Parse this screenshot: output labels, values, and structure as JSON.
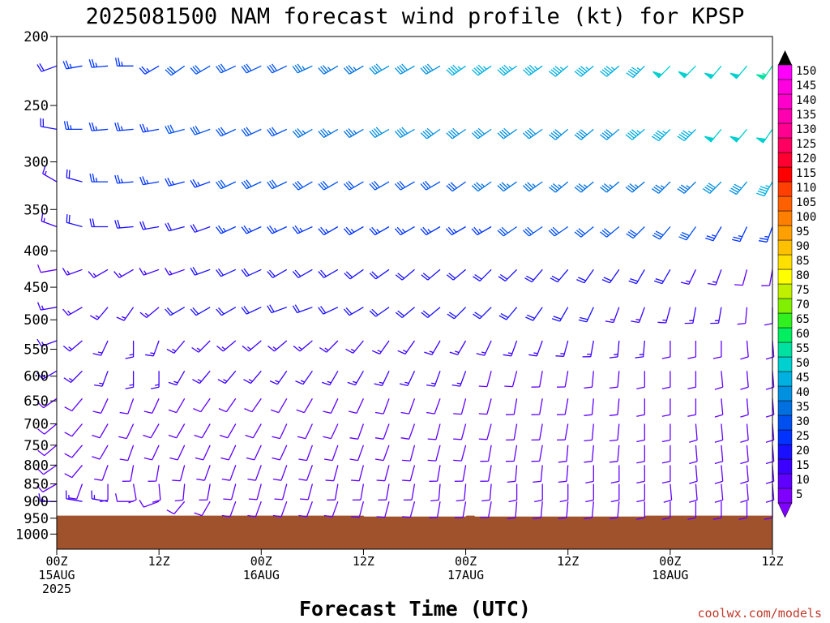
{
  "chart_data": {
    "type": "wind-barb-time-height",
    "title": "2025081500 NAM forecast wind profile (kt) for KPSP",
    "xlabel": "Forecast Time (UTC)",
    "ylabel": "",
    "units": "kt",
    "credit": "coolwx.com/models",
    "y_ticks": [
      200,
      250,
      300,
      350,
      400,
      450,
      500,
      550,
      600,
      650,
      700,
      750,
      800,
      850,
      900,
      950,
      1000
    ],
    "y_range_hpa": [
      200,
      1050
    ],
    "y_scale": "log-pressure",
    "x_range_hours": [
      0,
      84
    ],
    "x_ticks": [
      {
        "hour": 0,
        "line1": "00Z",
        "line2": "15AUG",
        "line3": "2025"
      },
      {
        "hour": 12,
        "line1": "12Z",
        "line2": "",
        "line3": ""
      },
      {
        "hour": 24,
        "line1": "00Z",
        "line2": "16AUG",
        "line3": ""
      },
      {
        "hour": 36,
        "line1": "12Z",
        "line2": "",
        "line3": ""
      },
      {
        "hour": 48,
        "line1": "00Z",
        "line2": "17AUG",
        "line3": ""
      },
      {
        "hour": 60,
        "line1": "12Z",
        "line2": "",
        "line3": ""
      },
      {
        "hour": 72,
        "line1": "00Z",
        "line2": "18AUG",
        "line3": ""
      },
      {
        "hour": 84,
        "line1": "12Z",
        "line2": "",
        "line3": ""
      }
    ],
    "barb_levels_hpa": [
      220,
      270,
      320,
      370,
      425,
      480,
      535,
      590,
      645,
      700,
      750,
      800,
      850,
      900
    ],
    "barb_hours": [
      0,
      3,
      6,
      9,
      12,
      15,
      18,
      21,
      24,
      27,
      30,
      33,
      36,
      39,
      42,
      45,
      48,
      51,
      54,
      57,
      60,
      63,
      66,
      69,
      72,
      75,
      78,
      81,
      84
    ],
    "surface": {
      "color": "#a0522d",
      "pressure_hpa": [
        {
          "hour": 0,
          "p": 942
        },
        {
          "hour": 36,
          "p": 942
        },
        {
          "hour": 36.1,
          "p": 945
        },
        {
          "hour": 48,
          "p": 945
        },
        {
          "hour": 48.1,
          "p": 942
        },
        {
          "hour": 49,
          "p": 942
        },
        {
          "hour": 49.1,
          "p": 945
        },
        {
          "hour": 69,
          "p": 945
        },
        {
          "hour": 69.1,
          "p": 942
        },
        {
          "hour": 84,
          "p": 942
        }
      ]
    },
    "colorbar": {
      "levels": [
        5,
        10,
        15,
        20,
        25,
        30,
        35,
        40,
        45,
        50,
        55,
        60,
        65,
        70,
        75,
        80,
        85,
        90,
        95,
        100,
        105,
        110,
        115,
        120,
        125,
        130,
        135,
        140,
        145,
        150
      ],
      "colors": [
        "#7f00ff",
        "#6000ff",
        "#3c00ff",
        "#1a10ff",
        "#0033ff",
        "#0050f0",
        "#0070e0",
        "#0090e0",
        "#00b0e0",
        "#00d0d0",
        "#00e0a0",
        "#00ee60",
        "#30f020",
        "#80f000",
        "#c0f000",
        "#ffff00",
        "#ffe000",
        "#ffc000",
        "#ffa000",
        "#ff8000",
        "#ff6000",
        "#ff4000",
        "#ff0000",
        "#ff0030",
        "#ff0060",
        "#ff0090",
        "#ff00b0",
        "#ff00cc",
        "#ff00e0",
        "#ff00ff"
      ]
    },
    "wind_speed_kt": [
      [
        20,
        25,
        25,
        25,
        25,
        30,
        30,
        30,
        30,
        30,
        35,
        35,
        35,
        40,
        40,
        40,
        45,
        45,
        45,
        45,
        45,
        45,
        45,
        45,
        50,
        50,
        50,
        50,
        55
      ],
      [
        20,
        25,
        25,
        25,
        25,
        30,
        30,
        30,
        30,
        30,
        35,
        35,
        35,
        40,
        40,
        40,
        40,
        40,
        40,
        40,
        40,
        40,
        40,
        45,
        45,
        45,
        50,
        50,
        50
      ],
      [
        15,
        20,
        25,
        25,
        25,
        25,
        25,
        30,
        30,
        30,
        30,
        30,
        30,
        30,
        30,
        30,
        30,
        35,
        35,
        35,
        35,
        35,
        35,
        35,
        35,
        35,
        40,
        40,
        45
      ],
      [
        15,
        20,
        20,
        20,
        20,
        20,
        20,
        25,
        25,
        25,
        25,
        25,
        25,
        25,
        25,
        25,
        25,
        25,
        30,
        30,
        30,
        30,
        30,
        30,
        30,
        30,
        25,
        25,
        25
      ],
      [
        10,
        15,
        15,
        15,
        15,
        15,
        20,
        20,
        20,
        20,
        20,
        20,
        20,
        20,
        20,
        20,
        20,
        20,
        20,
        20,
        20,
        20,
        20,
        20,
        20,
        15,
        15,
        10,
        10
      ],
      [
        15,
        15,
        15,
        15,
        15,
        20,
        20,
        20,
        20,
        20,
        20,
        20,
        20,
        20,
        20,
        20,
        20,
        20,
        20,
        20,
        20,
        20,
        15,
        15,
        15,
        15,
        15,
        10,
        10
      ],
      [
        15,
        15,
        15,
        15,
        15,
        15,
        15,
        15,
        15,
        15,
        15,
        15,
        15,
        15,
        15,
        15,
        15,
        15,
        15,
        15,
        15,
        15,
        15,
        15,
        10,
        10,
        10,
        10,
        10
      ],
      [
        15,
        15,
        15,
        15,
        15,
        15,
        15,
        15,
        15,
        15,
        15,
        15,
        15,
        15,
        15,
        15,
        15,
        10,
        10,
        10,
        10,
        10,
        10,
        10,
        10,
        10,
        10,
        10,
        10
      ],
      [
        10,
        10,
        10,
        10,
        10,
        10,
        10,
        10,
        10,
        10,
        10,
        10,
        10,
        10,
        10,
        10,
        10,
        10,
        10,
        10,
        10,
        10,
        10,
        10,
        10,
        10,
        10,
        10,
        10
      ],
      [
        10,
        10,
        10,
        10,
        10,
        10,
        10,
        10,
        10,
        10,
        10,
        10,
        10,
        10,
        10,
        10,
        10,
        10,
        10,
        10,
        10,
        10,
        10,
        10,
        10,
        10,
        10,
        10,
        10
      ],
      [
        10,
        10,
        10,
        10,
        10,
        10,
        10,
        10,
        10,
        10,
        10,
        10,
        10,
        10,
        10,
        10,
        10,
        10,
        10,
        10,
        10,
        10,
        10,
        10,
        10,
        10,
        10,
        10,
        10
      ],
      [
        10,
        10,
        10,
        10,
        10,
        10,
        10,
        10,
        10,
        10,
        10,
        10,
        10,
        10,
        10,
        10,
        10,
        10,
        10,
        10,
        10,
        10,
        10,
        10,
        10,
        10,
        10,
        10,
        10
      ],
      [
        10,
        10,
        10,
        10,
        10,
        10,
        10,
        10,
        10,
        10,
        10,
        10,
        10,
        10,
        10,
        10,
        10,
        10,
        10,
        10,
        10,
        10,
        10,
        10,
        10,
        10,
        10,
        10,
        10
      ],
      [
        15,
        15,
        15,
        10,
        10,
        10,
        10,
        10,
        10,
        10,
        10,
        10,
        10,
        10,
        10,
        10,
        10,
        10,
        10,
        10,
        10,
        10,
        10,
        10,
        10,
        10,
        10,
        10,
        10
      ]
    ],
    "wind_dir_deg": [
      [
        250,
        260,
        265,
        270,
        240,
        235,
        240,
        245,
        245,
        245,
        245,
        240,
        240,
        240,
        240,
        240,
        235,
        235,
        235,
        235,
        230,
        230,
        230,
        225,
        225,
        225,
        220,
        220,
        215
      ],
      [
        280,
        270,
        265,
        265,
        260,
        255,
        250,
        245,
        245,
        245,
        240,
        240,
        240,
        240,
        240,
        235,
        235,
        235,
        235,
        235,
        230,
        230,
        230,
        230,
        225,
        225,
        220,
        220,
        215
      ],
      [
        300,
        285,
        270,
        265,
        260,
        255,
        250,
        245,
        245,
        245,
        240,
        240,
        240,
        240,
        240,
        240,
        235,
        235,
        235,
        235,
        230,
        230,
        230,
        230,
        225,
        225,
        225,
        220,
        210
      ],
      [
        290,
        285,
        270,
        265,
        260,
        255,
        250,
        245,
        245,
        245,
        245,
        240,
        240,
        240,
        240,
        240,
        240,
        240,
        235,
        235,
        235,
        230,
        230,
        225,
        220,
        215,
        210,
        205,
        200
      ],
      [
        260,
        250,
        240,
        240,
        250,
        250,
        250,
        245,
        245,
        240,
        240,
        240,
        235,
        235,
        230,
        230,
        230,
        225,
        225,
        220,
        220,
        215,
        215,
        210,
        210,
        205,
        200,
        195,
        190
      ],
      [
        260,
        240,
        220,
        215,
        230,
        240,
        240,
        240,
        245,
        250,
        250,
        245,
        240,
        235,
        230,
        230,
        225,
        225,
        220,
        215,
        210,
        205,
        200,
        200,
        195,
        190,
        190,
        185,
        180
      ],
      [
        250,
        230,
        205,
        180,
        200,
        220,
        225,
        230,
        230,
        230,
        230,
        225,
        220,
        215,
        215,
        210,
        210,
        205,
        200,
        200,
        195,
        190,
        185,
        185,
        180,
        180,
        180,
        175,
        175
      ],
      [
        240,
        225,
        200,
        180,
        180,
        210,
        220,
        220,
        220,
        215,
        215,
        210,
        210,
        205,
        205,
        200,
        200,
        195,
        195,
        190,
        190,
        185,
        185,
        180,
        180,
        180,
        175,
        175,
        175
      ],
      [
        235,
        220,
        205,
        200,
        205,
        210,
        215,
        215,
        215,
        210,
        210,
        205,
        205,
        200,
        200,
        200,
        195,
        195,
        190,
        190,
        190,
        185,
        185,
        180,
        180,
        180,
        175,
        175,
        175
      ],
      [
        230,
        220,
        210,
        205,
        210,
        210,
        210,
        210,
        210,
        205,
        205,
        205,
        200,
        200,
        200,
        195,
        195,
        195,
        190,
        190,
        190,
        185,
        185,
        180,
        180,
        175,
        175,
        175,
        175
      ],
      [
        230,
        220,
        210,
        200,
        205,
        205,
        205,
        205,
        205,
        205,
        200,
        200,
        200,
        200,
        195,
        195,
        195,
        190,
        190,
        190,
        185,
        185,
        185,
        180,
        180,
        175,
        175,
        175,
        175
      ],
      [
        235,
        220,
        200,
        190,
        190,
        195,
        200,
        200,
        200,
        200,
        200,
        195,
        195,
        195,
        195,
        190,
        190,
        190,
        185,
        185,
        185,
        180,
        180,
        180,
        180,
        175,
        175,
        175,
        175
      ],
      [
        240,
        200,
        180,
        170,
        175,
        185,
        190,
        195,
        195,
        195,
        195,
        190,
        190,
        190,
        190,
        185,
        185,
        185,
        180,
        180,
        180,
        180,
        180,
        180,
        175,
        175,
        175,
        175,
        175
      ],
      [
        270,
        280,
        280,
        270,
        250,
        220,
        210,
        200,
        200,
        200,
        200,
        200,
        195,
        195,
        195,
        190,
        190,
        190,
        185,
        185,
        185,
        185,
        185,
        180,
        180,
        180,
        180,
        180,
        180
      ]
    ]
  }
}
